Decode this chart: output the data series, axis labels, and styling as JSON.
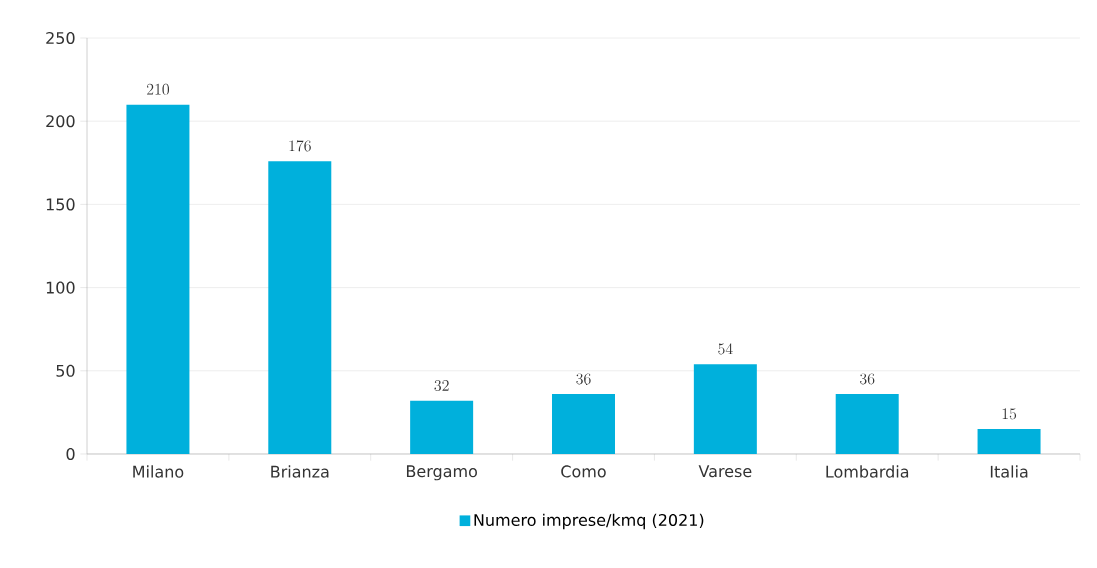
{
  "chart_data": {
    "type": "bar",
    "categories": [
      "Milano",
      "Brianza",
      "Bergamo",
      "Como",
      "Varese",
      "Lombardia",
      "Italia"
    ],
    "series": [
      {
        "name": "Numero imprese/kmq (2021)",
        "color": "#00b0dc",
        "values": [
          210,
          176,
          32,
          36,
          54,
          36,
          15
        ]
      }
    ],
    "ylim": [
      0,
      250
    ],
    "yticks": [
      0,
      50,
      100,
      150,
      200,
      250
    ],
    "grid": "y",
    "legend": "bottom",
    "data_labels": true
  }
}
